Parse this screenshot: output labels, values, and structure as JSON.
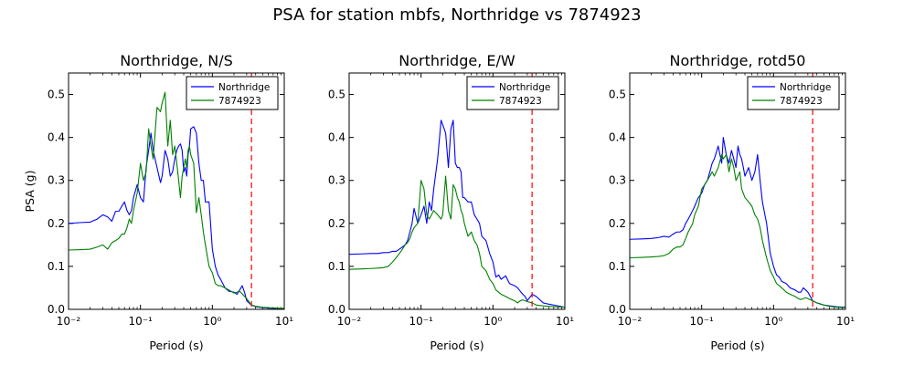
{
  "figure": {
    "suptitle": "PSA for station mbfs, Northridge vs 7874923"
  },
  "chart_data": [
    {
      "type": "line",
      "title": "Northridge, N/S",
      "xlabel": "Period (s)",
      "ylabel": "PSA (g)",
      "xscale": "log",
      "xlim": [
        0.01,
        10
      ],
      "ylim": [
        0,
        0.55
      ],
      "xticks": [
        "10⁻²",
        "10⁻¹",
        "10⁰",
        "10¹"
      ],
      "yticks": [
        "0.0",
        "0.1",
        "0.2",
        "0.3",
        "0.4",
        "0.5"
      ],
      "legend": "top-right",
      "vline": {
        "x": 3.5,
        "color": "#ff0000"
      },
      "series": [
        {
          "name": "Northridge",
          "color": "#0000ff",
          "x": [
            0.01,
            0.015,
            0.02,
            0.025,
            0.03,
            0.035,
            0.04,
            0.045,
            0.05,
            0.055,
            0.06,
            0.065,
            0.07,
            0.075,
            0.08,
            0.09,
            0.1,
            0.11,
            0.12,
            0.13,
            0.14,
            0.15,
            0.17,
            0.19,
            0.2,
            0.22,
            0.24,
            0.26,
            0.28,
            0.3,
            0.32,
            0.34,
            0.36,
            0.38,
            0.4,
            0.42,
            0.44,
            0.46,
            0.48,
            0.5,
            0.55,
            0.6,
            0.65,
            0.7,
            0.75,
            0.8,
            0.9,
            1.0,
            1.1,
            1.2,
            1.3,
            1.5,
            1.7,
            2.0,
            2.2,
            2.4,
            2.6,
            2.8,
            3.0,
            3.5,
            4.0,
            5.0,
            6.0,
            7.5,
            10.0
          ],
          "y": [
            0.2,
            0.202,
            0.203,
            0.21,
            0.22,
            0.215,
            0.205,
            0.228,
            0.228,
            0.24,
            0.25,
            0.23,
            0.22,
            0.23,
            0.26,
            0.29,
            0.26,
            0.25,
            0.33,
            0.37,
            0.41,
            0.37,
            0.33,
            0.295,
            0.31,
            0.37,
            0.35,
            0.31,
            0.32,
            0.35,
            0.37,
            0.38,
            0.385,
            0.37,
            0.32,
            0.33,
            0.31,
            0.36,
            0.38,
            0.42,
            0.425,
            0.41,
            0.34,
            0.3,
            0.3,
            0.25,
            0.25,
            0.14,
            0.1,
            0.08,
            0.07,
            0.05,
            0.042,
            0.04,
            0.035,
            0.045,
            0.055,
            0.04,
            0.02,
            0.01,
            0.006,
            0.004,
            0.003,
            0.002,
            0.002
          ]
        },
        {
          "name": "7874923",
          "color": "#008000",
          "x": [
            0.01,
            0.015,
            0.02,
            0.025,
            0.03,
            0.035,
            0.04,
            0.045,
            0.05,
            0.055,
            0.06,
            0.065,
            0.07,
            0.075,
            0.08,
            0.09,
            0.1,
            0.11,
            0.12,
            0.13,
            0.14,
            0.15,
            0.17,
            0.19,
            0.2,
            0.22,
            0.24,
            0.26,
            0.28,
            0.3,
            0.32,
            0.34,
            0.36,
            0.38,
            0.4,
            0.42,
            0.44,
            0.46,
            0.48,
            0.5,
            0.55,
            0.6,
            0.65,
            0.7,
            0.75,
            0.8,
            0.9,
            1.0,
            1.1,
            1.2,
            1.3,
            1.5,
            1.7,
            2.0,
            2.2,
            2.4,
            2.6,
            2.8,
            3.0,
            3.5,
            4.0,
            5.0,
            6.0,
            7.5,
            10.0
          ],
          "y": [
            0.138,
            0.139,
            0.14,
            0.145,
            0.15,
            0.14,
            0.155,
            0.16,
            0.165,
            0.175,
            0.175,
            0.19,
            0.21,
            0.2,
            0.23,
            0.27,
            0.34,
            0.3,
            0.32,
            0.42,
            0.38,
            0.35,
            0.47,
            0.46,
            0.48,
            0.505,
            0.38,
            0.44,
            0.36,
            0.38,
            0.34,
            0.3,
            0.26,
            0.31,
            0.33,
            0.35,
            0.33,
            0.37,
            0.38,
            0.36,
            0.34,
            0.225,
            0.26,
            0.22,
            0.18,
            0.15,
            0.1,
            0.085,
            0.06,
            0.055,
            0.055,
            0.05,
            0.045,
            0.038,
            0.04,
            0.042,
            0.036,
            0.03,
            0.025,
            0.01,
            0.007,
            0.005,
            0.004,
            0.003,
            0.002
          ]
        }
      ]
    },
    {
      "type": "line",
      "title": "Northridge, E/W",
      "xlabel": "Period (s)",
      "ylabel": "",
      "xscale": "log",
      "xlim": [
        0.01,
        10
      ],
      "ylim": [
        0,
        0.55
      ],
      "xticks": [
        "10⁻²",
        "10⁻¹",
        "10⁰",
        "10¹"
      ],
      "yticks": [
        "0.0",
        "0.1",
        "0.2",
        "0.3",
        "0.4",
        "0.5"
      ],
      "legend": "top-right",
      "vline": {
        "x": 3.5,
        "color": "#ff0000"
      },
      "series": [
        {
          "name": "Northridge",
          "color": "#0000ff",
          "x": [
            0.01,
            0.015,
            0.02,
            0.025,
            0.03,
            0.035,
            0.04,
            0.045,
            0.05,
            0.055,
            0.06,
            0.065,
            0.07,
            0.075,
            0.08,
            0.09,
            0.1,
            0.11,
            0.12,
            0.13,
            0.14,
            0.15,
            0.17,
            0.19,
            0.2,
            0.22,
            0.24,
            0.26,
            0.28,
            0.3,
            0.32,
            0.34,
            0.36,
            0.38,
            0.4,
            0.45,
            0.5,
            0.55,
            0.6,
            0.65,
            0.7,
            0.8,
            0.9,
            1.0,
            1.1,
            1.2,
            1.3,
            1.5,
            1.7,
            2.0,
            2.2,
            2.4,
            2.6,
            2.8,
            3.0,
            3.5,
            4.0,
            5.0,
            6.0,
            7.5,
            10.0
          ],
          "y": [
            0.128,
            0.129,
            0.13,
            0.13,
            0.132,
            0.132,
            0.135,
            0.135,
            0.14,
            0.145,
            0.15,
            0.16,
            0.18,
            0.2,
            0.235,
            0.2,
            0.22,
            0.24,
            0.2,
            0.25,
            0.23,
            0.28,
            0.35,
            0.44,
            0.43,
            0.41,
            0.33,
            0.42,
            0.44,
            0.34,
            0.33,
            0.33,
            0.32,
            0.26,
            0.26,
            0.25,
            0.25,
            0.22,
            0.21,
            0.2,
            0.17,
            0.16,
            0.13,
            0.11,
            0.075,
            0.08,
            0.07,
            0.078,
            0.06,
            0.055,
            0.05,
            0.042,
            0.035,
            0.03,
            0.02,
            0.035,
            0.03,
            0.015,
            0.012,
            0.009,
            0.005
          ]
        },
        {
          "name": "7874923",
          "color": "#008000",
          "x": [
            0.01,
            0.015,
            0.02,
            0.025,
            0.03,
            0.035,
            0.04,
            0.045,
            0.05,
            0.055,
            0.06,
            0.065,
            0.07,
            0.075,
            0.08,
            0.09,
            0.1,
            0.11,
            0.12,
            0.13,
            0.14,
            0.15,
            0.17,
            0.19,
            0.2,
            0.22,
            0.24,
            0.26,
            0.28,
            0.3,
            0.32,
            0.34,
            0.36,
            0.38,
            0.4,
            0.45,
            0.5,
            0.55,
            0.6,
            0.65,
            0.7,
            0.8,
            0.9,
            1.0,
            1.1,
            1.2,
            1.3,
            1.5,
            1.7,
            2.0,
            2.2,
            2.4,
            2.6,
            2.8,
            3.0,
            3.5,
            4.0,
            5.0,
            6.0,
            7.5,
            10.0
          ],
          "y": [
            0.093,
            0.094,
            0.095,
            0.096,
            0.097,
            0.1,
            0.11,
            0.12,
            0.13,
            0.14,
            0.15,
            0.155,
            0.165,
            0.18,
            0.19,
            0.2,
            0.3,
            0.28,
            0.22,
            0.21,
            0.22,
            0.23,
            0.22,
            0.21,
            0.22,
            0.31,
            0.23,
            0.21,
            0.29,
            0.28,
            0.26,
            0.25,
            0.23,
            0.22,
            0.2,
            0.17,
            0.18,
            0.16,
            0.15,
            0.13,
            0.1,
            0.09,
            0.07,
            0.06,
            0.045,
            0.04,
            0.035,
            0.03,
            0.025,
            0.02,
            0.015,
            0.02,
            0.022,
            0.02,
            0.018,
            0.015,
            0.01,
            0.008,
            0.007,
            0.006,
            0.005
          ]
        }
      ]
    },
    {
      "type": "line",
      "title": "Northridge, rotd50",
      "xlabel": "Period (s)",
      "ylabel": "",
      "xscale": "log",
      "xlim": [
        0.01,
        10
      ],
      "ylim": [
        0,
        0.55
      ],
      "xticks": [
        "10⁻²",
        "10⁻¹",
        "10⁰",
        "10¹"
      ],
      "yticks": [
        "0.0",
        "0.1",
        "0.2",
        "0.3",
        "0.4",
        "0.5"
      ],
      "legend": "top-right",
      "vline": {
        "x": 3.5,
        "color": "#ff0000"
      },
      "series": [
        {
          "name": "Northridge",
          "color": "#0000ff",
          "x": [
            0.01,
            0.015,
            0.02,
            0.025,
            0.03,
            0.035,
            0.04,
            0.045,
            0.05,
            0.055,
            0.06,
            0.065,
            0.07,
            0.075,
            0.08,
            0.09,
            0.1,
            0.11,
            0.12,
            0.13,
            0.14,
            0.15,
            0.17,
            0.19,
            0.2,
            0.22,
            0.24,
            0.26,
            0.28,
            0.3,
            0.32,
            0.34,
            0.36,
            0.38,
            0.4,
            0.45,
            0.5,
            0.55,
            0.6,
            0.65,
            0.7,
            0.8,
            0.9,
            1.0,
            1.1,
            1.2,
            1.3,
            1.5,
            1.7,
            2.0,
            2.2,
            2.4,
            2.6,
            2.8,
            3.0,
            3.5,
            4.0,
            5.0,
            6.0,
            7.5,
            10.0
          ],
          "y": [
            0.163,
            0.164,
            0.165,
            0.167,
            0.17,
            0.168,
            0.175,
            0.18,
            0.18,
            0.185,
            0.2,
            0.21,
            0.22,
            0.23,
            0.24,
            0.26,
            0.27,
            0.29,
            0.3,
            0.32,
            0.34,
            0.35,
            0.38,
            0.34,
            0.4,
            0.36,
            0.34,
            0.37,
            0.35,
            0.33,
            0.38,
            0.36,
            0.35,
            0.33,
            0.31,
            0.33,
            0.3,
            0.32,
            0.36,
            0.3,
            0.25,
            0.2,
            0.13,
            0.1,
            0.08,
            0.075,
            0.065,
            0.06,
            0.05,
            0.045,
            0.04,
            0.04,
            0.05,
            0.045,
            0.04,
            0.02,
            0.015,
            0.01,
            0.008,
            0.006,
            0.005
          ]
        },
        {
          "name": "7874923",
          "color": "#008000",
          "x": [
            0.01,
            0.015,
            0.02,
            0.025,
            0.03,
            0.035,
            0.04,
            0.045,
            0.05,
            0.055,
            0.06,
            0.065,
            0.07,
            0.075,
            0.08,
            0.09,
            0.1,
            0.11,
            0.12,
            0.13,
            0.14,
            0.15,
            0.17,
            0.19,
            0.2,
            0.22,
            0.24,
            0.26,
            0.28,
            0.3,
            0.32,
            0.34,
            0.36,
            0.38,
            0.4,
            0.45,
            0.5,
            0.55,
            0.6,
            0.65,
            0.7,
            0.8,
            0.9,
            1.0,
            1.1,
            1.2,
            1.3,
            1.5,
            1.7,
            2.0,
            2.2,
            2.4,
            2.6,
            2.8,
            3.0,
            3.5,
            4.0,
            5.0,
            6.0,
            7.5,
            10.0
          ],
          "y": [
            0.12,
            0.121,
            0.122,
            0.123,
            0.125,
            0.13,
            0.14,
            0.145,
            0.145,
            0.15,
            0.165,
            0.18,
            0.19,
            0.2,
            0.22,
            0.24,
            0.28,
            0.29,
            0.3,
            0.31,
            0.32,
            0.31,
            0.33,
            0.36,
            0.35,
            0.36,
            0.32,
            0.35,
            0.33,
            0.3,
            0.31,
            0.32,
            0.28,
            0.27,
            0.26,
            0.25,
            0.24,
            0.22,
            0.21,
            0.19,
            0.16,
            0.12,
            0.09,
            0.075,
            0.06,
            0.055,
            0.05,
            0.04,
            0.035,
            0.03,
            0.025,
            0.023,
            0.025,
            0.027,
            0.025,
            0.02,
            0.015,
            0.01,
            0.007,
            0.005,
            0.004
          ]
        }
      ]
    }
  ]
}
